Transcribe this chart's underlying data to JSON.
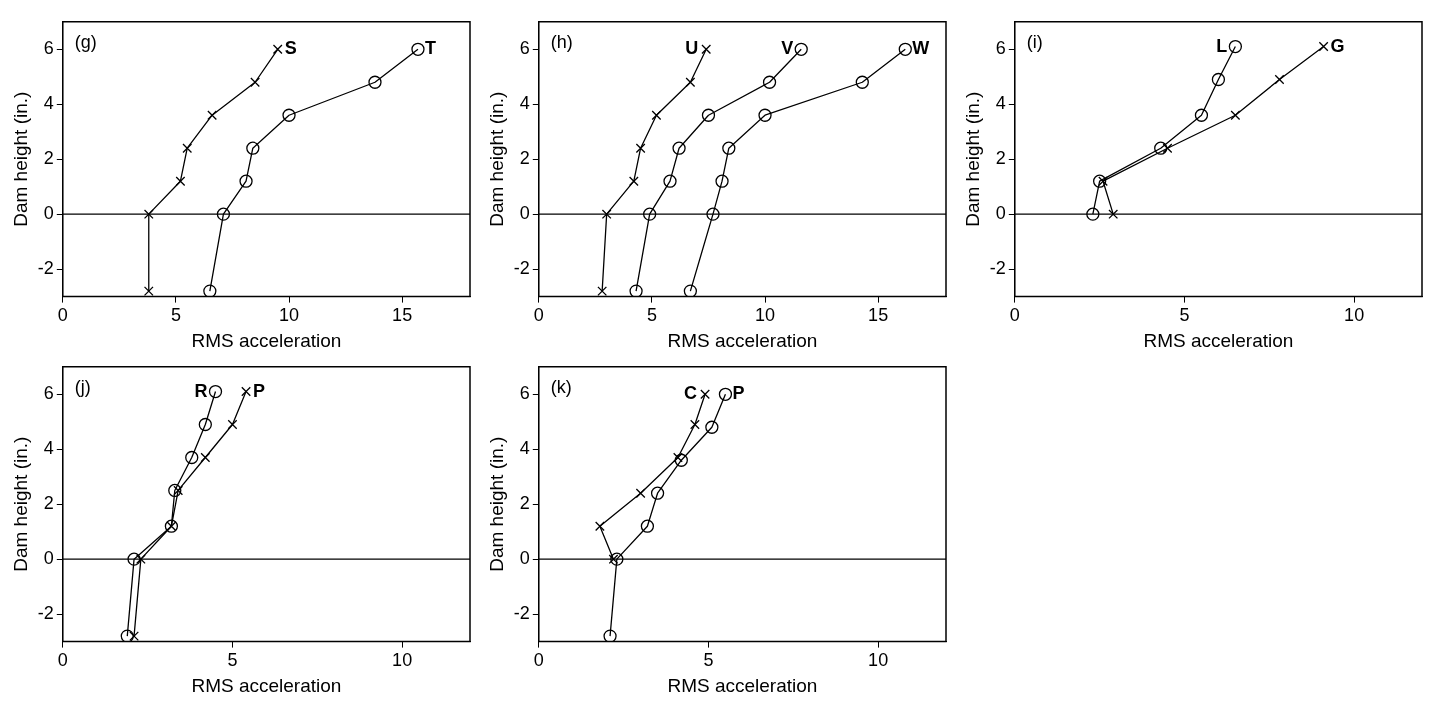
{
  "chart_data": [
    {
      "type": "line",
      "xlabel": "RMS acceleration",
      "ylabel": "Dam height (in.)",
      "xlim": [
        0,
        18
      ],
      "xticks": [
        0,
        5,
        10,
        15
      ],
      "ylim": [
        -3,
        7
      ],
      "yticks": [
        -2,
        0,
        2,
        4,
        6
      ],
      "grid": false,
      "legend": false,
      "line_style": "solid",
      "annotations": [
        "(g)"
      ],
      "ref_lines": [
        {
          "axis": "y",
          "value": 0,
          "color": "#000000"
        }
      ],
      "series": [
        {
          "name": "S",
          "color": "#000000",
          "marker": "cross",
          "x": [
            3.8,
            3.8,
            5.2,
            5.5,
            6.6,
            8.5,
            9.5
          ],
          "values": [
            -2.8,
            0,
            1.2,
            2.4,
            3.6,
            4.8,
            6
          ]
        },
        {
          "name": "T",
          "color": "#000000",
          "marker": "circle",
          "x": [
            6.5,
            7.1,
            8.1,
            8.4,
            10,
            13.8,
            15.7
          ],
          "values": [
            -2.8,
            0,
            1.2,
            2.4,
            3.6,
            4.8,
            6
          ]
        }
      ]
    },
    {
      "type": "line",
      "xlabel": "RMS acceleration",
      "ylabel": "Dam height (in.)",
      "xlim": [
        0,
        18
      ],
      "xticks": [
        0,
        5,
        10,
        15
      ],
      "ylim": [
        -3,
        7
      ],
      "yticks": [
        -2,
        0,
        2,
        4,
        6
      ],
      "grid": false,
      "legend": false,
      "line_style": "solid",
      "annotations": [
        "(h)"
      ],
      "ref_lines": [
        {
          "axis": "y",
          "value": 0,
          "color": "#000000"
        }
      ],
      "series": [
        {
          "name": "U",
          "color": "#000000",
          "marker": "cross",
          "x": [
            2.8,
            3,
            4.2,
            4.5,
            5.2,
            6.7,
            7.4
          ],
          "values": [
            -2.8,
            0,
            1.2,
            2.4,
            3.6,
            4.8,
            6
          ]
        },
        {
          "name": "V",
          "color": "#000000",
          "marker": "circle",
          "x": [
            4.3,
            4.9,
            5.8,
            6.2,
            7.5,
            10.2,
            11.6
          ],
          "values": [
            -2.8,
            0,
            1.2,
            2.4,
            3.6,
            4.8,
            6
          ]
        },
        {
          "name": "W",
          "color": "#000000",
          "marker": "circle",
          "x": [
            6.7,
            7.7,
            8.1,
            8.4,
            10,
            14.3,
            16.2
          ],
          "values": [
            -2.8,
            0,
            1.2,
            2.4,
            3.6,
            4.8,
            6
          ]
        }
      ]
    },
    {
      "type": "line",
      "xlabel": "RMS acceleration",
      "ylabel": "Dam height (in.)",
      "xlim": [
        0,
        12
      ],
      "xticks": [
        0,
        5,
        10
      ],
      "ylim": [
        -3,
        7
      ],
      "yticks": [
        -2,
        0,
        2,
        4,
        6
      ],
      "grid": false,
      "legend": false,
      "line_style": "solid",
      "annotations": [
        "(i)"
      ],
      "ref_lines": [
        {
          "axis": "y",
          "value": 0,
          "color": "#000000"
        }
      ],
      "series": [
        {
          "name": "L",
          "color": "#000000",
          "marker": "circle",
          "x": [
            2.3,
            2.5,
            4.3,
            5.5,
            6,
            6.5
          ],
          "values": [
            0,
            1.2,
            2.4,
            3.6,
            4.9,
            6.1
          ]
        },
        {
          "name": "G",
          "color": "#000000",
          "marker": "cross",
          "x": [
            2.9,
            2.6,
            4.5,
            6.5,
            7.8,
            9.1
          ],
          "values": [
            0,
            1.2,
            2.4,
            3.6,
            4.9,
            6.1
          ]
        }
      ]
    },
    {
      "type": "line",
      "xlabel": "RMS acceleration",
      "ylabel": "Dam height (in.)",
      "xlim": [
        0,
        12
      ],
      "xticks": [
        0,
        5,
        10
      ],
      "ylim": [
        -3,
        7
      ],
      "yticks": [
        -2,
        0,
        2,
        4,
        6
      ],
      "grid": false,
      "legend": false,
      "line_style": "solid",
      "annotations": [
        "(j)"
      ],
      "ref_lines": [
        {
          "axis": "y",
          "value": 0,
          "color": "#000000"
        }
      ],
      "series": [
        {
          "name": "R",
          "color": "#000000",
          "marker": "circle",
          "x": [
            1.9,
            2.1,
            3.2,
            3.3,
            3.8,
            4.2,
            4.5
          ],
          "values": [
            -2.8,
            0,
            1.2,
            2.5,
            3.7,
            4.9,
            6.1
          ]
        },
        {
          "name": "P",
          "color": "#000000",
          "marker": "cross",
          "x": [
            2.1,
            2.3,
            3.2,
            3.4,
            4.2,
            5,
            5.4
          ],
          "values": [
            -2.8,
            0,
            1.2,
            2.5,
            3.7,
            4.9,
            6.1
          ]
        }
      ]
    },
    {
      "type": "line",
      "xlabel": "RMS acceleration",
      "ylabel": "Dam height (in.)",
      "xlim": [
        0,
        12
      ],
      "xticks": [
        0,
        5,
        10
      ],
      "ylim": [
        -3,
        7
      ],
      "yticks": [
        -2,
        0,
        2,
        4,
        6
      ],
      "grid": false,
      "legend": false,
      "line_style": "solid",
      "annotations": [
        "(k)"
      ],
      "ref_lines": [
        {
          "axis": "y",
          "value": 0,
          "color": "#000000"
        }
      ],
      "series": [
        {
          "name": "C",
          "color": "#000000",
          "marker": "cross",
          "x": [
            2.2,
            1.8,
            3,
            4.1,
            4.6,
            4.9
          ],
          "values": [
            0,
            1.2,
            2.4,
            3.7,
            4.9,
            6
          ]
        },
        {
          "name": "P",
          "color": "#000000",
          "marker": "circle",
          "x": [
            2.1,
            2.3,
            3.2,
            3.5,
            4.2,
            5.1,
            5.5
          ],
          "values": [
            -2.8,
            0,
            1.2,
            2.4,
            3.6,
            4.8,
            6
          ]
        }
      ]
    }
  ]
}
